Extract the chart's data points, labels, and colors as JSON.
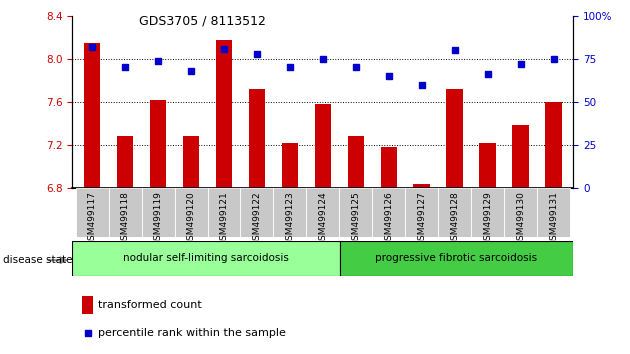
{
  "title": "GDS3705 / 8113512",
  "samples": [
    "GSM499117",
    "GSM499118",
    "GSM499119",
    "GSM499120",
    "GSM499121",
    "GSM499122",
    "GSM499123",
    "GSM499124",
    "GSM499125",
    "GSM499126",
    "GSM499127",
    "GSM499128",
    "GSM499129",
    "GSM499130",
    "GSM499131"
  ],
  "bar_values": [
    8.15,
    7.28,
    7.62,
    7.28,
    8.18,
    7.72,
    7.22,
    7.58,
    7.28,
    7.18,
    6.83,
    7.72,
    7.22,
    7.38,
    7.6
  ],
  "percentile_values": [
    82,
    70,
    74,
    68,
    81,
    78,
    70,
    75,
    70,
    65,
    60,
    80,
    66,
    72,
    75
  ],
  "bar_color": "#cc0000",
  "percentile_color": "#0000cc",
  "ylim_left": [
    6.8,
    8.4
  ],
  "ylim_right": [
    0,
    100
  ],
  "yticks_left": [
    6.8,
    7.2,
    7.6,
    8.0,
    8.4
  ],
  "yticks_right": [
    0,
    25,
    50,
    75,
    100
  ],
  "ytick_right_labels": [
    "0",
    "25",
    "50",
    "75",
    "100%"
  ],
  "grid_values": [
    8.0,
    7.6,
    7.2
  ],
  "group1_label": "nodular self-limiting sarcoidosis",
  "group2_label": "progressive fibrotic sarcoidosis",
  "group1_count": 8,
  "group2_count": 7,
  "group1_color": "#99ff99",
  "group2_color": "#44cc44",
  "disease_state_label": "disease state",
  "legend_bar_label": "transformed count",
  "legend_pct_label": "percentile rank within the sample",
  "bar_width": 0.5,
  "tick_bg_color": "#c8c8c8"
}
